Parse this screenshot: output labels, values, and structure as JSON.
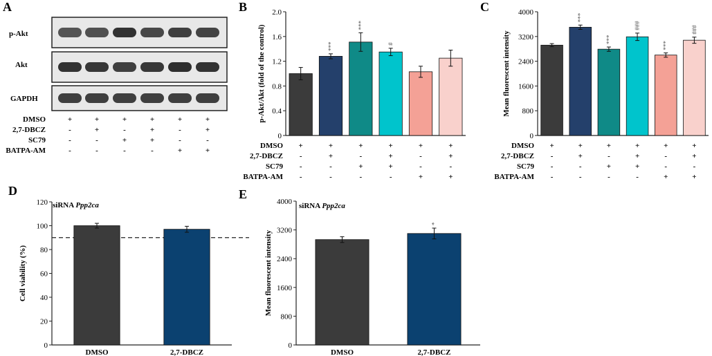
{
  "panel_labels": {
    "A": "A",
    "B": "B",
    "C": "C",
    "D": "D",
    "E": "E"
  },
  "western_blot": {
    "rows": [
      {
        "label": "p-Akt",
        "intensities": [
          0.55,
          0.6,
          0.95,
          0.7,
          0.8,
          0.75
        ]
      },
      {
        "label": "Akt",
        "intensities": [
          0.95,
          0.9,
          0.8,
          0.9,
          1.0,
          0.95
        ]
      },
      {
        "label": "GAPDH",
        "intensities": [
          0.8,
          0.8,
          0.8,
          0.8,
          0.8,
          0.8
        ]
      }
    ]
  },
  "conditions": {
    "labels": [
      "DMSO",
      "2,7-DBCZ",
      "SC79",
      "BATPA-AM"
    ],
    "matrix": [
      [
        "+",
        "+",
        "+",
        "+",
        "+",
        "+"
      ],
      [
        "-",
        "+",
        "-",
        "+",
        "-",
        "+"
      ],
      [
        "-",
        "-",
        "+",
        "+",
        "-",
        "-"
      ],
      [
        "-",
        "-",
        "-",
        "-",
        "+",
        "+"
      ]
    ]
  },
  "colors": {
    "bars6": [
      "#3b3b3b",
      "#24406b",
      "#0f8a87",
      "#00c4cc",
      "#f4a196",
      "#f9d1cc"
    ],
    "bars2": [
      "#3b3b3b",
      "#0b4170"
    ]
  },
  "chart_data": [
    {
      "id": "B",
      "type": "bar",
      "ylabel": "p-Akt/Akt  (fold of the control)",
      "ylim": [
        0,
        2.0
      ],
      "yticks": [
        "0",
        "0.4",
        "0.8",
        "1.2",
        "1.6",
        "2.0"
      ],
      "values": [
        1.0,
        1.28,
        1.51,
        1.35,
        1.03,
        1.25
      ],
      "errors": [
        0.1,
        0.04,
        0.15,
        0.06,
        0.09,
        0.13
      ],
      "annotations": [
        "",
        "***",
        "***",
        "#",
        "",
        ""
      ]
    },
    {
      "id": "C",
      "type": "bar",
      "ylabel": "Mean fluorescent intensity",
      "ylim": [
        0,
        4000
      ],
      "yticks": [
        "0",
        "800",
        "1600",
        "2400",
        "3200",
        "4000"
      ],
      "values": [
        2920,
        3500,
        2790,
        3190,
        2600,
        3080
      ],
      "errors": [
        50,
        70,
        70,
        120,
        70,
        100
      ],
      "annotations": [
        "",
        "***",
        "***",
        "###",
        "***",
        "###"
      ]
    },
    {
      "id": "D",
      "type": "bar",
      "title": "siRNA Ppp2ca",
      "ylabel": "Cell viability (%)",
      "ylim": [
        0,
        120
      ],
      "yticks": [
        "0",
        "20",
        "40",
        "60",
        "80",
        "100",
        "120"
      ],
      "categories": [
        "DMSO",
        "2,7-DBCZ"
      ],
      "values": [
        100,
        97
      ],
      "errors": [
        2,
        2.5
      ],
      "annotations": [
        "",
        ""
      ],
      "reference_line": 90
    },
    {
      "id": "E",
      "type": "bar",
      "title": "siRNA Ppp2ca",
      "ylabel": "Mean fluorescent intensity",
      "ylim": [
        0,
        4000
      ],
      "yticks": [
        "0",
        "800",
        "1600",
        "2400",
        "3200",
        "4000"
      ],
      "categories": [
        "DMSO",
        "2,7-DBCZ"
      ],
      "values": [
        2930,
        3100
      ],
      "errors": [
        80,
        150
      ],
      "annotations": [
        "",
        "*"
      ]
    }
  ],
  "sirna_prefix": "siRNA ",
  "sirna_gene": "Ppp2ca"
}
